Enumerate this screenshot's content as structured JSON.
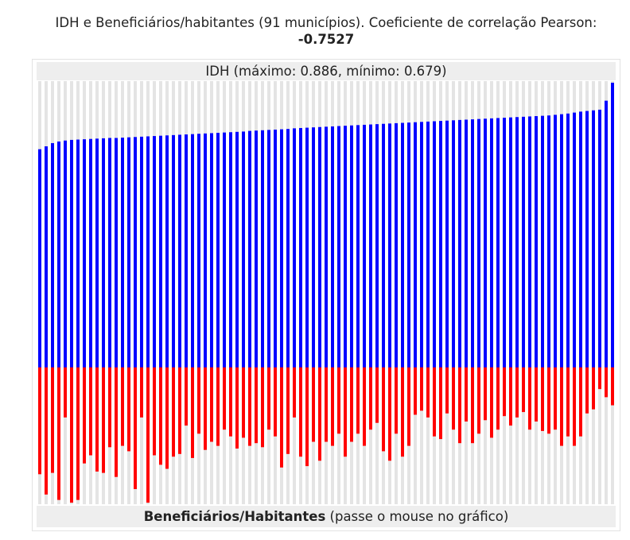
{
  "chart_data": {
    "type": "bar",
    "title": "IDH e Beneficiários/habitantes (91 municípios). Coeficiente de correlação Pearson:",
    "pearson": -0.7527,
    "subtitle": "IDH (máximo: 0.886, mínimo: 0.679)",
    "xlabel": "Beneficiários/Habitantes",
    "xlabel_note": "(passe o mouse no gráfico)",
    "series": [
      {
        "name": "IDH",
        "color": "#0000ff",
        "ylim": [
          0,
          0.886
        ],
        "values": [
          0.679,
          0.688,
          0.698,
          0.703,
          0.706,
          0.708,
          0.709,
          0.71,
          0.711,
          0.712,
          0.713,
          0.714,
          0.714,
          0.715,
          0.716,
          0.717,
          0.718,
          0.719,
          0.72,
          0.721,
          0.722,
          0.723,
          0.724,
          0.725,
          0.726,
          0.727,
          0.728,
          0.729,
          0.73,
          0.731,
          0.732,
          0.733,
          0.734,
          0.736,
          0.737,
          0.738,
          0.739,
          0.74,
          0.741,
          0.742,
          0.744,
          0.745,
          0.746,
          0.747,
          0.748,
          0.749,
          0.75,
          0.751,
          0.752,
          0.753,
          0.754,
          0.755,
          0.756,
          0.757,
          0.758,
          0.759,
          0.76,
          0.761,
          0.762,
          0.763,
          0.764,
          0.765,
          0.766,
          0.767,
          0.768,
          0.769,
          0.77,
          0.771,
          0.772,
          0.773,
          0.774,
          0.775,
          0.776,
          0.777,
          0.778,
          0.779,
          0.78,
          0.781,
          0.782,
          0.783,
          0.784,
          0.786,
          0.788,
          0.79,
          0.793,
          0.796,
          0.798,
          0.8,
          0.802,
          0.83,
          0.886
        ]
      },
      {
        "name": "Beneficiários/Habitantes",
        "color": "#ff0000",
        "ylim": [
          0,
          1
        ],
        "values": [
          0.79,
          0.94,
          0.78,
          0.98,
          0.37,
          1.0,
          0.98,
          0.71,
          0.65,
          0.77,
          0.78,
          0.59,
          0.81,
          0.58,
          0.62,
          0.9,
          0.37,
          1.0,
          0.65,
          0.72,
          0.75,
          0.66,
          0.64,
          0.43,
          0.67,
          0.49,
          0.61,
          0.55,
          0.58,
          0.46,
          0.51,
          0.6,
          0.52,
          0.58,
          0.56,
          0.59,
          0.46,
          0.51,
          0.74,
          0.64,
          0.37,
          0.66,
          0.73,
          0.55,
          0.69,
          0.55,
          0.58,
          0.49,
          0.66,
          0.55,
          0.49,
          0.58,
          0.46,
          0.41,
          0.62,
          0.69,
          0.49,
          0.66,
          0.58,
          0.35,
          0.32,
          0.37,
          0.51,
          0.53,
          0.34,
          0.46,
          0.56,
          0.4,
          0.56,
          0.49,
          0.39,
          0.52,
          0.46,
          0.36,
          0.43,
          0.37,
          0.33,
          0.46,
          0.4,
          0.47,
          0.49,
          0.46,
          0.58,
          0.51,
          0.58,
          0.51,
          0.34,
          0.31,
          0.16,
          0.22,
          0.28
        ]
      }
    ]
  }
}
